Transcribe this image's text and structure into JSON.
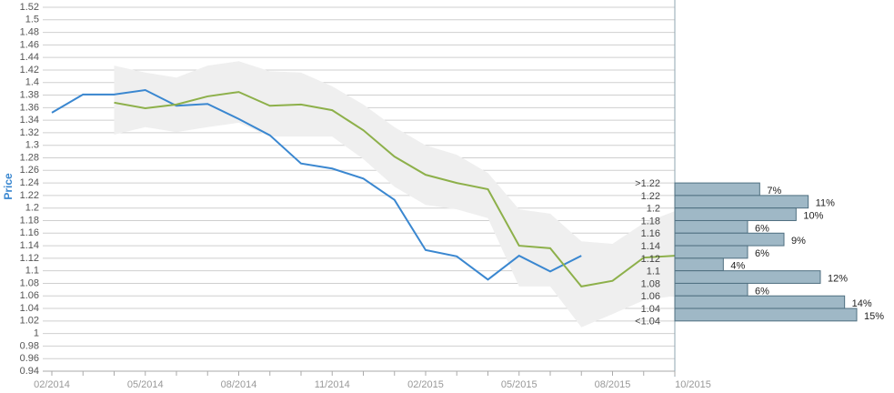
{
  "chart_data": [
    {
      "type": "line",
      "y_label": "Price",
      "x": [
        "02/2014",
        null,
        null,
        "05/2014",
        null,
        null,
        "08/2014",
        null,
        null,
        "11/2014",
        null,
        null,
        "02/2015",
        null,
        null,
        "05/2015",
        null,
        null,
        "08/2015",
        null,
        "10/2015"
      ],
      "ylim": [
        0.94,
        1.52
      ],
      "yticks": [
        0.94,
        0.96,
        0.98,
        1,
        1.02,
        1.04,
        1.06,
        1.08,
        1.1,
        1.12,
        1.14,
        1.16,
        1.18,
        1.2,
        1.22,
        1.24,
        1.26,
        1.28,
        1.3,
        1.32,
        1.34,
        1.36,
        1.38,
        1.4,
        1.42,
        1.44,
        1.46,
        1.48,
        1.5,
        1.52
      ],
      "grid": true,
      "band": {
        "color": "#efefef",
        "upper": [
          null,
          null,
          1.427,
          1.416,
          1.408,
          1.427,
          1.434,
          1.418,
          1.416,
          1.394,
          1.365,
          1.329,
          1.3,
          1.285,
          1.256,
          1.198,
          1.191,
          1.147,
          1.143,
          1.176,
          1.195
        ],
        "lower": [
          null,
          null,
          1.317,
          1.329,
          1.321,
          1.329,
          1.336,
          1.314,
          1.314,
          1.314,
          1.278,
          1.234,
          1.205,
          1.198,
          1.184,
          1.075,
          1.075,
          1.01,
          1.031,
          1.053,
          1.06
        ]
      },
      "series": [
        {
          "color": "#3a87d0",
          "values": [
            1.352,
            1.381,
            1.381,
            1.388,
            1.363,
            1.366,
            1.342,
            1.316,
            1.271,
            1.263,
            1.247,
            1.213,
            1.133,
            1.123,
            1.086,
            1.124,
            1.099,
            1.124,
            null,
            null,
            null
          ]
        },
        {
          "color": "#8db04a",
          "values": [
            null,
            null,
            1.368,
            1.359,
            1.365,
            1.378,
            1.385,
            1.363,
            1.365,
            1.356,
            1.324,
            1.282,
            1.253,
            1.24,
            1.23,
            1.14,
            1.136,
            1.075,
            1.084,
            1.121,
            1.124
          ]
        }
      ]
    },
    {
      "type": "histogram",
      "orientation": "horizontal",
      "categories": [
        ">1.22",
        "1.22",
        "1.2",
        "1.18",
        "1.16",
        "1.14",
        "1.12",
        "1.1",
        "1.08",
        "1.06",
        "1.04",
        "<1.04"
      ],
      "bins": [
        1.24,
        1.22,
        1.2,
        1.18,
        1.16,
        1.14,
        1.12,
        1.1,
        1.08,
        1.06,
        1.04,
        1.02
      ],
      "values": [
        7,
        11,
        10,
        6,
        9,
        6,
        4,
        12,
        6,
        14,
        15
      ],
      "value_labels": [
        "7%",
        "11%",
        "10%",
        "6%",
        "9%",
        "6%",
        "4%",
        "12%",
        "6%",
        "14%",
        "15%"
      ],
      "color": "#9fb8c6",
      "edge_color": "#4f6f80"
    }
  ]
}
